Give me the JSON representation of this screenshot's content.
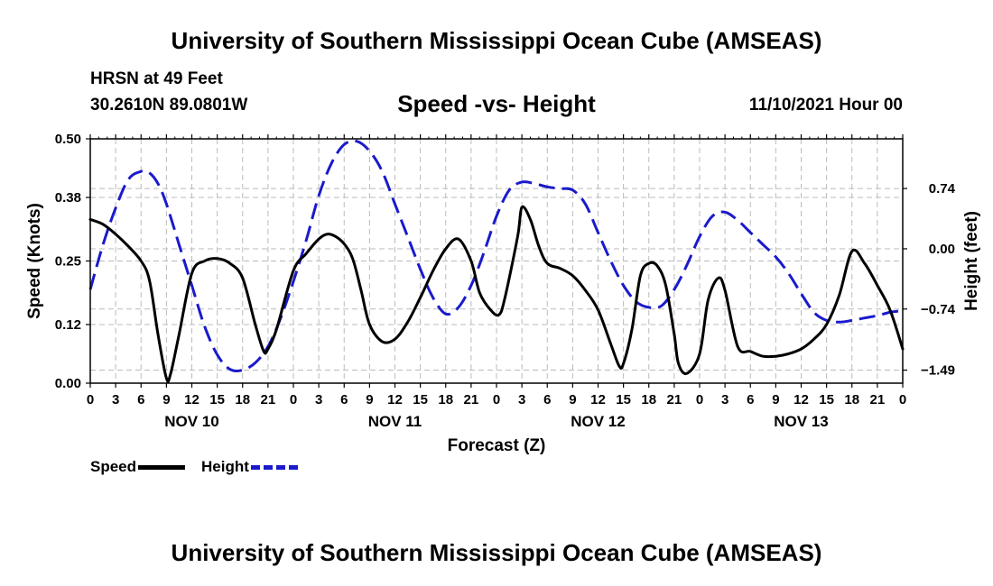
{
  "header": {
    "title": "University of Southern Mississippi Ocean Cube (AMSEAS)",
    "station": "HRSN at 49 Feet",
    "coords": "30.2610N  89.0801W",
    "subtitle": "Speed -vs- Height",
    "datetime": "11/10/2021 Hour 00"
  },
  "footer": {
    "title": "University of Southern Mississippi Ocean Cube (AMSEAS)"
  },
  "legend": {
    "speed_label": "Speed",
    "height_label": "Height"
  },
  "colors": {
    "speed": "#000000",
    "height": "#1a1acc",
    "grid": "#bbbbbb"
  },
  "chart_data": {
    "type": "line",
    "title": "Speed -vs- Height",
    "xlabel": "Forecast (Z)",
    "ylabel": "Speed (Knots)",
    "y2label": "Height (feet)",
    "xlim": [
      0,
      96
    ],
    "ylim": [
      0,
      0.5
    ],
    "y2lim": [
      -1.65,
      1.35
    ],
    "x_ticks": [
      0,
      3,
      6,
      9,
      12,
      15,
      18,
      21,
      24,
      27,
      30,
      33,
      36,
      39,
      42,
      45,
      48,
      51,
      54,
      57,
      60,
      63,
      66,
      69,
      72,
      75,
      78,
      81,
      84,
      87,
      90,
      93,
      96
    ],
    "x_tick_labels": [
      "0",
      "3",
      "6",
      "9",
      "12",
      "15",
      "18",
      "21",
      "0",
      "3",
      "6",
      "9",
      "12",
      "15",
      "18",
      "21",
      "0",
      "3",
      "6",
      "9",
      "12",
      "15",
      "18",
      "21",
      "0",
      "3",
      "6",
      "9",
      "12",
      "15",
      "18",
      "21",
      "0"
    ],
    "day_labels": [
      {
        "x": 12,
        "label": "NOV 10"
      },
      {
        "x": 36,
        "label": "NOV 11"
      },
      {
        "x": 60,
        "label": "NOV 12"
      },
      {
        "x": 84,
        "label": "NOV 13"
      }
    ],
    "y_ticks": [
      0.0,
      0.12,
      0.25,
      0.38,
      0.5
    ],
    "y_tick_labels": [
      "0.00",
      "0.12",
      "0.25",
      "0.38",
      "0.50"
    ],
    "y2_ticks": [
      -1.49,
      -0.74,
      0.0,
      0.74
    ],
    "y2_tick_labels": [
      "−1.49",
      "−0.74",
      "0.00",
      "0.74"
    ],
    "series": [
      {
        "name": "Speed",
        "axis": "left",
        "x": [
          0,
          1.5,
          3,
          4.5,
          6,
          7,
          8,
          9,
          9.5,
          10.5,
          12,
          13.5,
          15,
          16.5,
          18,
          19.5,
          20.5,
          21,
          22,
          24,
          25.5,
          27,
          28,
          29,
          30,
          31,
          32,
          33,
          34.5,
          36,
          37.5,
          39,
          40.5,
          42,
          43.5,
          45,
          46,
          47.3,
          48.3,
          49,
          50.5,
          51,
          52,
          53,
          54,
          55.5,
          57,
          58.5,
          60,
          61.5,
          62.5,
          63,
          64,
          65,
          66,
          67,
          68,
          69,
          69.5,
          70.5,
          72,
          73,
          74.2,
          75,
          76.5,
          78,
          79.5,
          81,
          82.5,
          84,
          85.5,
          87,
          88.5,
          90,
          91.5,
          93,
          94.5,
          96
        ],
        "values": [
          0.335,
          0.325,
          0.305,
          0.28,
          0.25,
          0.21,
          0.1,
          0.01,
          0.02,
          0.1,
          0.225,
          0.25,
          0.255,
          0.245,
          0.215,
          0.12,
          0.065,
          0.07,
          0.11,
          0.23,
          0.265,
          0.295,
          0.305,
          0.3,
          0.285,
          0.255,
          0.19,
          0.12,
          0.085,
          0.09,
          0.125,
          0.175,
          0.23,
          0.275,
          0.295,
          0.25,
          0.185,
          0.15,
          0.14,
          0.175,
          0.3,
          0.36,
          0.335,
          0.28,
          0.245,
          0.235,
          0.22,
          0.19,
          0.15,
          0.08,
          0.035,
          0.04,
          0.11,
          0.22,
          0.245,
          0.24,
          0.2,
          0.1,
          0.04,
          0.02,
          0.06,
          0.17,
          0.215,
          0.19,
          0.075,
          0.065,
          0.055,
          0.055,
          0.06,
          0.07,
          0.09,
          0.12,
          0.18,
          0.27,
          0.245,
          0.2,
          0.15,
          0.07
        ]
      },
      {
        "name": "Height",
        "axis": "right",
        "x": [
          0,
          1.5,
          3,
          4.5,
          6,
          7,
          8,
          9,
          10.5,
          12,
          13.5,
          15,
          16.5,
          18,
          19.5,
          21,
          22.5,
          24,
          25.5,
          27,
          28.5,
          30,
          31.5,
          33,
          34.5,
          36,
          37.5,
          39,
          40.5,
          42,
          43.5,
          45,
          46.5,
          48,
          49.5,
          51,
          52.5,
          54,
          55.5,
          57,
          58.5,
          60,
          61.5,
          63,
          64.5,
          66,
          67.5,
          69,
          70.5,
          72,
          73.5,
          75,
          76.5,
          78,
          79.5,
          81,
          82.5,
          84,
          85.5,
          87,
          88.5,
          90,
          91.5,
          93,
          94.5,
          96
        ],
        "values": [
          -0.5,
          0.05,
          0.5,
          0.85,
          0.95,
          0.93,
          0.8,
          0.55,
          0.05,
          -0.45,
          -0.95,
          -1.3,
          -1.48,
          -1.49,
          -1.4,
          -1.2,
          -0.85,
          -0.4,
          0.1,
          0.65,
          1.05,
          1.28,
          1.32,
          1.2,
          0.95,
          0.55,
          0.15,
          -0.25,
          -0.6,
          -0.8,
          -0.72,
          -0.45,
          -0.05,
          0.4,
          0.72,
          0.82,
          0.8,
          0.76,
          0.74,
          0.72,
          0.55,
          0.2,
          -0.15,
          -0.45,
          -0.65,
          -0.72,
          -0.7,
          -0.5,
          -0.2,
          0.15,
          0.4,
          0.45,
          0.35,
          0.2,
          0.05,
          -0.1,
          -0.3,
          -0.55,
          -0.78,
          -0.88,
          -0.9,
          -0.88,
          -0.85,
          -0.82,
          -0.78,
          -0.76
        ]
      }
    ]
  }
}
